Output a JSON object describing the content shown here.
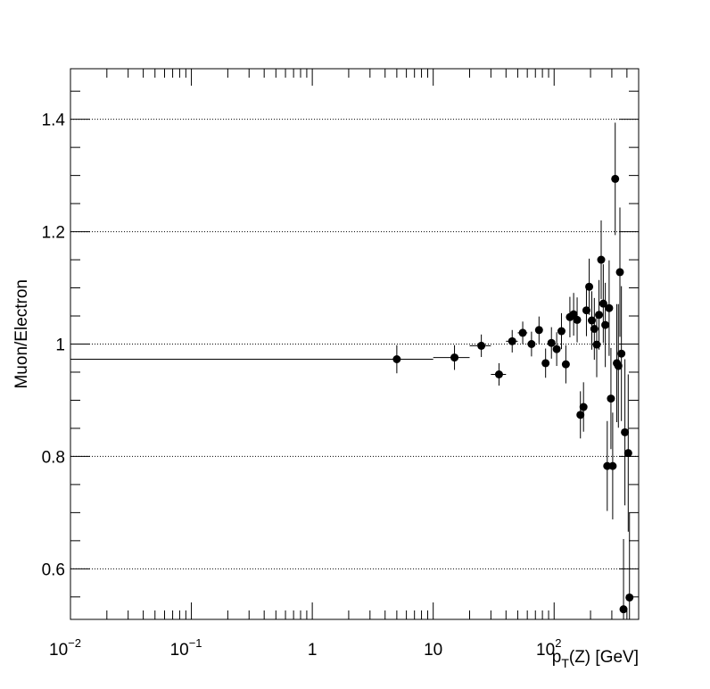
{
  "chart_data": {
    "type": "scatter",
    "xscale": "log",
    "xlim": [
      0.01,
      500
    ],
    "ylim": [
      0.51,
      1.49
    ],
    "ylabel": "Muon/Electron",
    "xlabel": {
      "main": "p",
      "sub": "T",
      "rest": "(Z) [GeV]"
    },
    "xticks": [
      {
        "value": 0.01,
        "base": "10",
        "exp": "−2"
      },
      {
        "value": 0.1,
        "base": "10",
        "exp": "−1"
      },
      {
        "value": 1,
        "base": "1",
        "exp": ""
      },
      {
        "value": 10,
        "base": "10",
        "exp": ""
      },
      {
        "value": 100,
        "base": "10",
        "exp": "2"
      }
    ],
    "yticks": [
      {
        "value": 0.6,
        "label": "0.6"
      },
      {
        "value": 0.8,
        "label": "0.8"
      },
      {
        "value": 1.0,
        "label": "1"
      },
      {
        "value": 1.2,
        "label": "1.2"
      },
      {
        "value": 1.4,
        "label": "1.4"
      }
    ],
    "grid": {
      "y": true,
      "x": false
    },
    "marker_color": "#000000",
    "points": [
      {
        "x": 5,
        "xlo": 0.01,
        "xhi": 10,
        "y": 0.973,
        "err": 0.025
      },
      {
        "x": 15,
        "xlo": 10,
        "xhi": 20,
        "y": 0.976,
        "err": 0.022
      },
      {
        "x": 25,
        "xlo": 20,
        "xhi": 30,
        "y": 0.997,
        "err": 0.02
      },
      {
        "x": 35,
        "xlo": 30,
        "xhi": 40,
        "y": 0.946,
        "err": 0.02
      },
      {
        "x": 45,
        "xlo": 40,
        "xhi": 50,
        "y": 1.005,
        "err": 0.02
      },
      {
        "x": 55,
        "xlo": 50,
        "xhi": 60,
        "y": 1.02,
        "err": 0.02
      },
      {
        "x": 65,
        "xlo": 60,
        "xhi": 70,
        "y": 1.0,
        "err": 0.022
      },
      {
        "x": 75,
        "xlo": 70,
        "xhi": 80,
        "y": 1.025,
        "err": 0.024
      },
      {
        "x": 85,
        "xlo": 80,
        "xhi": 90,
        "y": 0.966,
        "err": 0.026
      },
      {
        "x": 95,
        "xlo": 90,
        "xhi": 100,
        "y": 1.002,
        "err": 0.028
      },
      {
        "x": 105,
        "xlo": 100,
        "xhi": 110,
        "y": 0.991,
        "err": 0.03
      },
      {
        "x": 115,
        "xlo": 110,
        "xhi": 120,
        "y": 1.023,
        "err": 0.032
      },
      {
        "x": 125,
        "xlo": 120,
        "xhi": 130,
        "y": 0.964,
        "err": 0.034
      },
      {
        "x": 135,
        "xlo": 130,
        "xhi": 140,
        "y": 1.048,
        "err": 0.036
      },
      {
        "x": 145,
        "xlo": 140,
        "xhi": 150,
        "y": 1.053,
        "err": 0.038
      },
      {
        "x": 155,
        "xlo": 150,
        "xhi": 160,
        "y": 1.043,
        "err": 0.04
      },
      {
        "x": 165,
        "xlo": 160,
        "xhi": 170,
        "y": 0.874,
        "err": 0.042
      },
      {
        "x": 175,
        "xlo": 170,
        "xhi": 180,
        "y": 0.888,
        "err": 0.044
      },
      {
        "x": 185,
        "xlo": 180,
        "xhi": 190,
        "y": 1.06,
        "err": 0.046
      },
      {
        "x": 195,
        "xlo": 190,
        "xhi": 200,
        "y": 1.102,
        "err": 0.05
      },
      {
        "x": 205,
        "xlo": 200,
        "xhi": 210,
        "y": 1.042,
        "err": 0.052
      },
      {
        "x": 215,
        "xlo": 210,
        "xhi": 220,
        "y": 1.027,
        "err": 0.055
      },
      {
        "x": 225,
        "xlo": 220,
        "xhi": 230,
        "y": 0.999,
        "err": 0.058
      },
      {
        "x": 235,
        "xlo": 230,
        "xhi": 240,
        "y": 1.052,
        "err": 0.062
      },
      {
        "x": 245,
        "xlo": 240,
        "xhi": 250,
        "y": 1.15,
        "err": 0.07
      },
      {
        "x": 255,
        "xlo": 250,
        "xhi": 260,
        "y": 1.072,
        "err": 0.07
      },
      {
        "x": 265,
        "xlo": 260,
        "xhi": 270,
        "y": 1.034,
        "err": 0.075
      },
      {
        "x": 275,
        "xlo": 270,
        "xhi": 280,
        "y": 0.783,
        "err": 0.08
      },
      {
        "x": 285,
        "xlo": 280,
        "xhi": 290,
        "y": 1.064,
        "err": 0.085
      },
      {
        "x": 295,
        "xlo": 290,
        "xhi": 300,
        "y": 0.903,
        "err": 0.09
      },
      {
        "x": 305,
        "xlo": 300,
        "xhi": 310,
        "y": 0.783,
        "err": 0.095
      },
      {
        "x": 320,
        "xlo": 310,
        "xhi": 330,
        "y": 1.294,
        "err": 0.1
      },
      {
        "x": 330,
        "xlo": 320,
        "xhi": 340,
        "y": 0.966,
        "err": 0.105
      },
      {
        "x": 340,
        "xlo": 330,
        "xhi": 350,
        "y": 0.961,
        "err": 0.11
      },
      {
        "x": 350,
        "xlo": 340,
        "xhi": 360,
        "y": 1.128,
        "err": 0.115
      },
      {
        "x": 360,
        "xlo": 350,
        "xhi": 370,
        "y": 0.983,
        "err": 0.12
      },
      {
        "x": 375,
        "xlo": 365,
        "xhi": 385,
        "y": 0.528,
        "err": 0.125
      },
      {
        "x": 385,
        "xlo": 375,
        "xhi": 395,
        "y": 0.843,
        "err": 0.13
      },
      {
        "x": 410,
        "xlo": 400,
        "xhi": 420,
        "y": 0.806,
        "err": 0.14
      },
      {
        "x": 420,
        "xlo": 410,
        "xhi": 430,
        "y": 0.549,
        "err": 0.15
      }
    ]
  }
}
